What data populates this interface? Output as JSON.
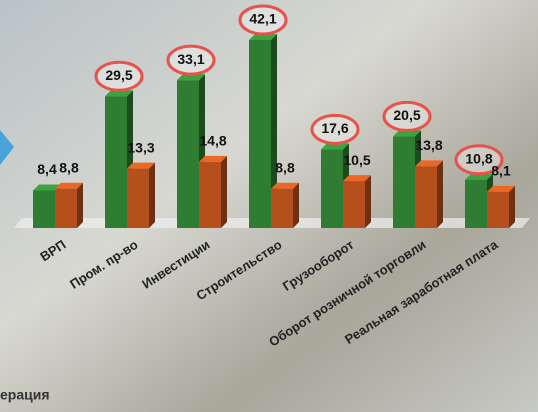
{
  "chart_data": {
    "type": "bar",
    "categories": [
      "ВРП",
      "Пром. пр-во",
      "Инвестиции",
      "Строительство",
      "Грузооборот",
      "Оборот розничной торговли",
      "Реальная заработная плата"
    ],
    "series": [
      {
        "color": "#2e7d32",
        "values": [
          8.4,
          29.5,
          33.1,
          42.1,
          17.6,
          20.5,
          10.8
        ],
        "value_labels": [
          "8,4",
          "29,5",
          "33,1",
          "42,1",
          "17,6",
          "20,5",
          "10,8"
        ]
      },
      {
        "color": "#b5501c",
        "values": [
          8.8,
          13.3,
          14.8,
          8.8,
          10.5,
          13.8,
          8.1
        ],
        "value_labels": [
          "8,8",
          "13,3",
          "14,8",
          "8,8",
          "10,5",
          "13,8",
          "8,1"
        ]
      }
    ],
    "ylim": [
      0,
      45
    ]
  },
  "footer_text": "ерация"
}
